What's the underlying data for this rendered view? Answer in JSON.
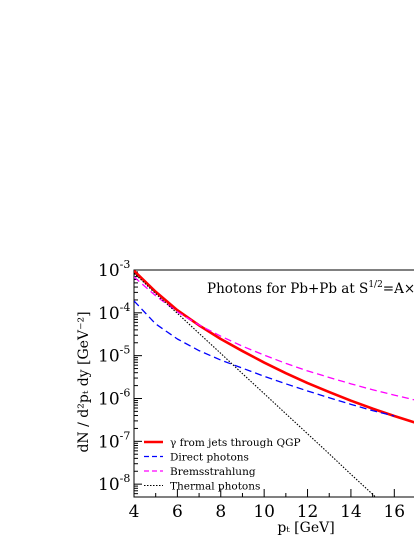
{
  "chart_data": {
    "type": "line",
    "title_main": "Photons for Pb+Pb at S",
    "title_sup": "1/2",
    "title_tail": "=A×",
    "ylabel": "dN / d²pₜ dy [GeV⁻²]",
    "xlabel": "pₜ [GeV]",
    "xlim": [
      4,
      17
    ],
    "ylim_log10": [
      -8.3,
      -3
    ],
    "yscale": "log",
    "xticks": [
      4,
      6,
      8,
      10,
      12,
      14,
      16
    ],
    "yticks": [
      {
        "exp": -3,
        "base": "10",
        "sup": "-3"
      },
      {
        "exp": -4,
        "base": "10",
        "sup": "-4"
      },
      {
        "exp": -5,
        "base": "10",
        "sup": "-5"
      },
      {
        "exp": -6,
        "base": "10",
        "sup": "-6"
      },
      {
        "exp": -7,
        "base": "10",
        "sup": "-7"
      },
      {
        "exp": -8,
        "base": "10",
        "sup": "-8"
      }
    ],
    "legend_position": "bottom-left",
    "series": [
      {
        "name": "γ from jets through QGP",
        "color": "#ff0000",
        "style": "solid",
        "x": [
          4,
          5,
          6,
          7,
          8,
          9,
          10,
          11,
          12,
          13,
          14,
          15,
          16,
          17
        ],
        "y": [
          0.00096,
          0.00031,
          0.000115,
          5.1e-05,
          2.45e-05,
          1.28e-05,
          6.9e-06,
          3.9e-06,
          2.29e-06,
          1.41e-06,
          8.9e-07,
          5.8e-07,
          3.9e-07,
          2.7e-07
        ]
      },
      {
        "name": "Direct photons",
        "color": "#0000ff",
        "style": "dashed",
        "x": [
          4,
          5,
          6,
          7,
          8,
          9,
          10,
          11,
          12,
          13,
          14,
          15,
          16
        ],
        "y": [
          0.00019,
          5.5e-05,
          2.45e-05,
          1.31e-05,
          7.9e-06,
          5.1e-06,
          3.3e-06,
          2.2e-06,
          1.5e-06,
          1.04e-06,
          7.3e-07,
          5.2e-07,
          3.9e-07
        ]
      },
      {
        "name": "Bremsstrahlung",
        "color": "#ff00ff",
        "style": "dashed",
        "x": [
          4,
          5,
          6,
          7,
          8,
          9,
          10,
          11,
          12,
          13,
          14,
          15,
          16,
          17
        ],
        "y": [
          0.00069,
          0.00025,
          0.000105,
          5.2e-05,
          2.85e-05,
          1.66e-05,
          1.03e-05,
          6.6e-06,
          4.4e-06,
          3.1e-06,
          2.2e-06,
          1.6e-06,
          1.2e-06,
          9.1e-07
        ]
      },
      {
        "name": "Thermal photons",
        "color": "#000000",
        "style": "dotted",
        "x": [
          4,
          5,
          6,
          7,
          8,
          9,
          10,
          11,
          12,
          13,
          14,
          15,
          16,
          17
        ],
        "y": [
          0.00085,
          0.00028,
          9.75e-05,
          3.31e-05,
          1.13e-05,
          3.8e-06,
          1.3e-06,
          4.4e-07,
          1.5e-07,
          5.1e-08,
          1.7e-08,
          5.8e-09,
          2e-09,
          7e-10
        ]
      }
    ]
  }
}
